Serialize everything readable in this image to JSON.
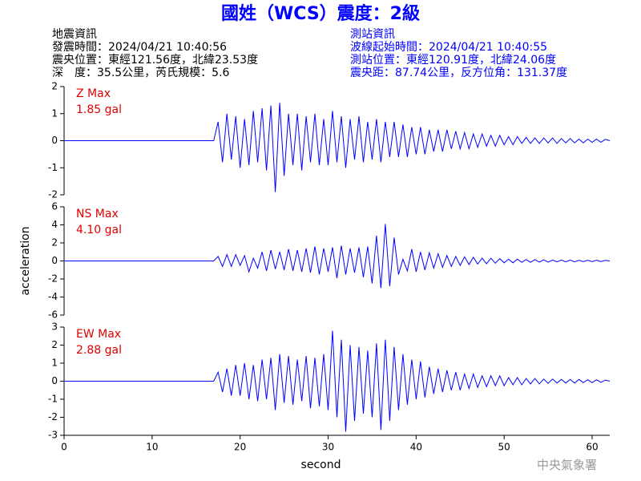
{
  "header": {
    "title": "國姓（WCS）震度：2級",
    "left": [
      "地震資訊",
      "發震時間：2024/04/21 10:40:56",
      "震央位置：東經121.56度，北緯23.53度",
      "深　度：35.5公里，芮氏規模：5.6"
    ],
    "right": [
      "測站資訊",
      "波線起始時間：2024/04/21 10:40:55",
      "測站位置：東經120.91度，北緯24.06度",
      "震央距：87.74公里，反方位角：131.37度"
    ],
    "footer": "中央氣象署"
  },
  "chart_data": [
    {
      "type": "line",
      "color": "#0000ff",
      "annotations": [
        "Z Max",
        "1.85 gal"
      ],
      "xlim": [
        0,
        62
      ],
      "ylim": [
        -2,
        2
      ],
      "yticks": [
        -2,
        -1,
        0,
        1,
        2
      ],
      "x": [
        0,
        17,
        17.5,
        18,
        18.5,
        19,
        19.5,
        20,
        20.5,
        21,
        21.5,
        22,
        22.5,
        23,
        23.5,
        24,
        24.5,
        25,
        25.5,
        26,
        26.5,
        27,
        27.5,
        28,
        28.5,
        29,
        29.5,
        30,
        30.5,
        31,
        31.5,
        32,
        32.5,
        33,
        33.5,
        34,
        34.5,
        35,
        35.5,
        36,
        36.5,
        37,
        37.5,
        38,
        38.5,
        39,
        39.5,
        40,
        40.5,
        41,
        41.5,
        42,
        42.5,
        43,
        43.5,
        44,
        44.5,
        45,
        45.5,
        46,
        46.5,
        47,
        47.5,
        48,
        48.5,
        49,
        49.5,
        50,
        50.5,
        51,
        51.5,
        52,
        52.5,
        53,
        53.5,
        54,
        54.5,
        55,
        55.5,
        56,
        56.5,
        57,
        57.5,
        58,
        58.5,
        59,
        59.5,
        60,
        60.5,
        61,
        61.5,
        62
      ],
      "values": [
        0,
        0,
        0.7,
        -0.8,
        1.0,
        -0.7,
        0.9,
        -1.0,
        0.8,
        -0.9,
        1.1,
        -0.8,
        1.2,
        -1.1,
        1.3,
        -1.9,
        1.4,
        -1.3,
        1.0,
        -0.9,
        1.0,
        -1.1,
        0.9,
        -0.8,
        1.0,
        -0.9,
        0.8,
        -0.9,
        1.1,
        -0.8,
        0.9,
        -1.0,
        0.8,
        -0.7,
        0.9,
        -0.8,
        0.7,
        -0.7,
        0.8,
        -0.8,
        0.7,
        -0.6,
        0.7,
        -0.6,
        0.6,
        -0.6,
        0.5,
        -0.5,
        0.5,
        -0.5,
        0.4,
        -0.4,
        0.4,
        -0.4,
        0.4,
        -0.3,
        0.35,
        -0.3,
        0.3,
        -0.3,
        0.25,
        -0.25,
        0.25,
        -0.2,
        0.2,
        -0.2,
        0.2,
        -0.15,
        0.15,
        -0.15,
        0.15,
        -0.1,
        0.12,
        -0.1,
        0.1,
        -0.1,
        0.1,
        -0.08,
        0.1,
        -0.1,
        0.08,
        -0.08,
        0.08,
        -0.08,
        0.06,
        -0.08,
        0.06,
        -0.06,
        0.06,
        -0.06,
        0.05,
        0
      ]
    },
    {
      "type": "line",
      "color": "#0000ff",
      "annotations": [
        "NS Max",
        "4.10 gal"
      ],
      "ylabel": "acceleration",
      "xlim": [
        0,
        62
      ],
      "ylim": [
        -6,
        6
      ],
      "yticks": [
        -6,
        -4,
        -2,
        0,
        2,
        4,
        6
      ],
      "x": [
        0,
        17,
        17.5,
        18,
        18.5,
        19,
        19.5,
        20,
        20.5,
        21,
        21.5,
        22,
        22.5,
        23,
        23.5,
        24,
        24.5,
        25,
        25.5,
        26,
        26.5,
        27,
        27.5,
        28,
        28.5,
        29,
        29.5,
        30,
        30.5,
        31,
        31.5,
        32,
        32.5,
        33,
        33.5,
        34,
        34.5,
        35,
        35.5,
        36,
        36.5,
        37,
        37.5,
        38,
        38.5,
        39,
        39.5,
        40,
        40.5,
        41,
        41.5,
        42,
        42.5,
        43,
        43.5,
        44,
        44.5,
        45,
        45.5,
        46,
        46.5,
        47,
        47.5,
        48,
        48.5,
        49,
        49.5,
        50,
        50.5,
        51,
        51.5,
        52,
        52.5,
        53,
        53.5,
        54,
        54.5,
        55,
        55.5,
        56,
        56.5,
        57,
        57.5,
        58,
        58.5,
        59,
        59.5,
        60,
        60.5,
        61,
        61.5,
        62
      ],
      "values": [
        0,
        0,
        0.5,
        -0.6,
        0.7,
        -0.6,
        0.7,
        -0.5,
        0.6,
        -1.2,
        0.3,
        -0.8,
        1.0,
        -1.1,
        1.2,
        -0.9,
        1.0,
        -1.0,
        1.3,
        -1.1,
        1.2,
        -1.2,
        1.4,
        -1.3,
        1.6,
        -1.5,
        1.4,
        -1.2,
        1.5,
        -1.9,
        1.7,
        -1.5,
        1.4,
        -1.3,
        1.5,
        -1.8,
        1.6,
        -2.5,
        2.8,
        -3.0,
        4.1,
        -2.8,
        2.6,
        -1.5,
        0.2,
        -1.1,
        1.3,
        -1.2,
        1.0,
        -1.0,
        0.9,
        -0.8,
        0.8,
        -0.7,
        0.6,
        -0.6,
        0.5,
        -0.5,
        0.45,
        -0.4,
        0.4,
        -0.35,
        0.3,
        -0.3,
        0.3,
        -0.25,
        0.25,
        -0.2,
        0.2,
        -0.2,
        0.2,
        -0.15,
        0.15,
        -0.15,
        0.15,
        -0.12,
        0.12,
        -0.12,
        0.1,
        -0.1,
        0.1,
        -0.1,
        0.1,
        -0.1,
        0.08,
        -0.08,
        0.08,
        -0.08,
        0.08,
        -0.06,
        0.06,
        0
      ]
    },
    {
      "type": "line",
      "color": "#0000ff",
      "annotations": [
        "EW Max",
        "2.88 gal"
      ],
      "xlabel": "second",
      "xlim": [
        0,
        62
      ],
      "xticks": [
        0,
        10,
        20,
        30,
        40,
        50,
        60
      ],
      "ylim": [
        -3,
        3
      ],
      "yticks": [
        -3,
        -2,
        -1,
        0,
        1,
        2,
        3
      ],
      "x": [
        0,
        17,
        17.5,
        18,
        18.5,
        19,
        19.5,
        20,
        20.5,
        21,
        21.5,
        22,
        22.5,
        23,
        23.5,
        24,
        24.5,
        25,
        25.5,
        26,
        26.5,
        27,
        27.5,
        28,
        28.5,
        29,
        29.5,
        30,
        30.5,
        31,
        31.5,
        32,
        32.5,
        33,
        33.5,
        34,
        34.5,
        35,
        35.5,
        36,
        36.5,
        37,
        37.5,
        38,
        38.5,
        39,
        39.5,
        40,
        40.5,
        41,
        41.5,
        42,
        42.5,
        43,
        43.5,
        44,
        44.5,
        45,
        45.5,
        46,
        46.5,
        47,
        47.5,
        48,
        48.5,
        49,
        49.5,
        50,
        50.5,
        51,
        51.5,
        52,
        52.5,
        53,
        53.5,
        54,
        54.5,
        55,
        55.5,
        56,
        56.5,
        57,
        57.5,
        58,
        58.5,
        59,
        59.5,
        60,
        60.5,
        61,
        61.5,
        62
      ],
      "values": [
        0,
        0,
        0.5,
        -0.6,
        0.7,
        -0.8,
        0.9,
        -0.8,
        1.0,
        -1.0,
        0.9,
        -1.1,
        1.2,
        -1.0,
        1.3,
        -1.6,
        1.5,
        -1.2,
        1.4,
        -1.3,
        1.2,
        -1.1,
        1.4,
        -1.5,
        1.3,
        -1.4,
        1.5,
        -1.6,
        2.8,
        -2.0,
        2.3,
        -2.8,
        2.0,
        -2.2,
        1.9,
        -1.8,
        1.7,
        -2.0,
        2.1,
        -2.7,
        2.3,
        -2.2,
        1.9,
        -1.6,
        1.5,
        -1.3,
        1.2,
        -1.0,
        1.1,
        -0.9,
        0.8,
        -0.7,
        0.7,
        -0.6,
        0.6,
        -0.5,
        0.5,
        -0.5,
        0.4,
        -0.4,
        0.4,
        -0.35,
        0.3,
        -0.3,
        0.3,
        -0.25,
        0.3,
        -0.25,
        0.2,
        -0.2,
        0.2,
        -0.2,
        0.15,
        -0.15,
        0.15,
        -0.15,
        0.12,
        -0.12,
        0.12,
        -0.1,
        0.1,
        -0.1,
        0.1,
        -0.1,
        0.1,
        -0.08,
        0.08,
        -0.08,
        0.08,
        -0.06,
        0.06,
        0
      ]
    }
  ]
}
